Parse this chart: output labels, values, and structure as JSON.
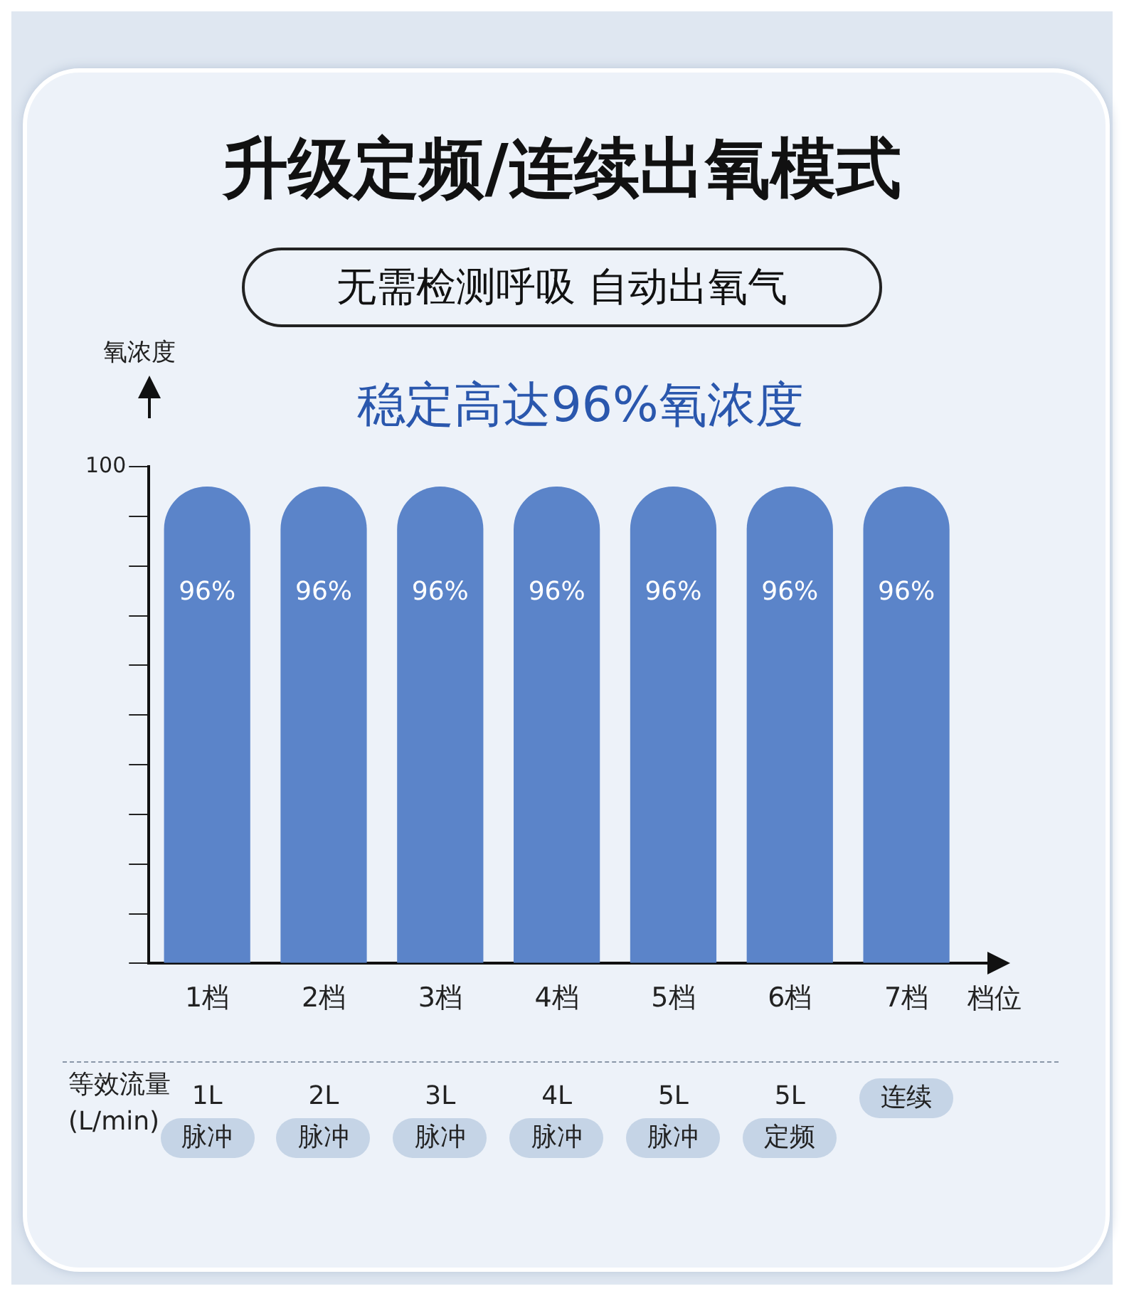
{
  "chart_data": {
    "type": "bar",
    "title": "升级定频/连续出氧模式",
    "subtitle": "无需检测呼吸 自动出氧气",
    "ylabel": "氧浓度",
    "xlabel": "档位",
    "categories": [
      "1档",
      "2档",
      "3档",
      "4档",
      "5档",
      "6档",
      "7档"
    ],
    "values": [
      96,
      96,
      96,
      96,
      96,
      96,
      96
    ],
    "value_labels": [
      "96%",
      "96%",
      "96%",
      "96%",
      "96%",
      "96%",
      "96%"
    ],
    "color": "#5b84c9",
    "ylim": [
      0,
      100
    ],
    "yticks": [
      {
        "value": 0,
        "label": null
      },
      {
        "value": 10,
        "label": null
      },
      {
        "value": 20,
        "label": null
      },
      {
        "value": 30,
        "label": null
      },
      {
        "value": 40,
        "label": null
      },
      {
        "value": 50,
        "label": null
      },
      {
        "value": 60,
        "label": null
      },
      {
        "value": 70,
        "label": null
      },
      {
        "value": 80,
        "label": null
      },
      {
        "value": 90,
        "label": null
      },
      100
    ],
    "grid": false,
    "annotations": [
      "稳定高达96%氧浓度",
      "等效流量\n(L/min)",
      "1L\n脉冲",
      "2L\n脉冲",
      "3L\n脉冲",
      "4L\n脉冲",
      "5L\n脉冲",
      "5L\n定频",
      "连续"
    ]
  }
}
